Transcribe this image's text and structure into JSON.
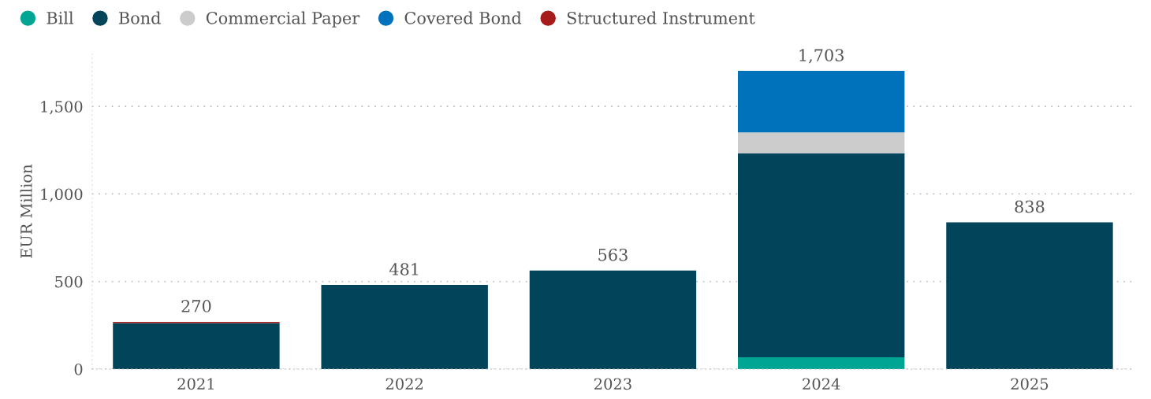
{
  "chart_data": {
    "type": "bar",
    "stacked": true,
    "ylabel": "EUR Million",
    "categories": [
      "2021",
      "2022",
      "2023",
      "2024",
      "2025"
    ],
    "series": [
      {
        "name": "Bill",
        "color": "#00a693",
        "values": [
          0,
          0,
          0,
          67,
          0
        ]
      },
      {
        "name": "Bond",
        "color": "#02455b",
        "values": [
          263,
          481,
          563,
          1165,
          838
        ]
      },
      {
        "name": "Commercial Paper",
        "color": "#cccccc",
        "values": [
          0,
          0,
          0,
          120,
          0
        ]
      },
      {
        "name": "Covered Bond",
        "color": "#0072bc",
        "values": [
          0,
          0,
          0,
          351,
          0
        ]
      },
      {
        "name": "Structured Instrument",
        "color": "#a61c1c",
        "values": [
          7,
          0,
          0,
          0,
          0
        ]
      }
    ],
    "totals": [
      "270",
      "481",
      "563",
      "1,703",
      "838"
    ],
    "ylim": [
      0,
      1800
    ],
    "yticks": [
      0,
      {
        "value": 500,
        "label": "500"
      },
      {
        "value": 1000,
        "label": "1,000"
      },
      {
        "value": 1500,
        "label": "1,500"
      }
    ],
    "grid": "y",
    "legend": "top left"
  }
}
